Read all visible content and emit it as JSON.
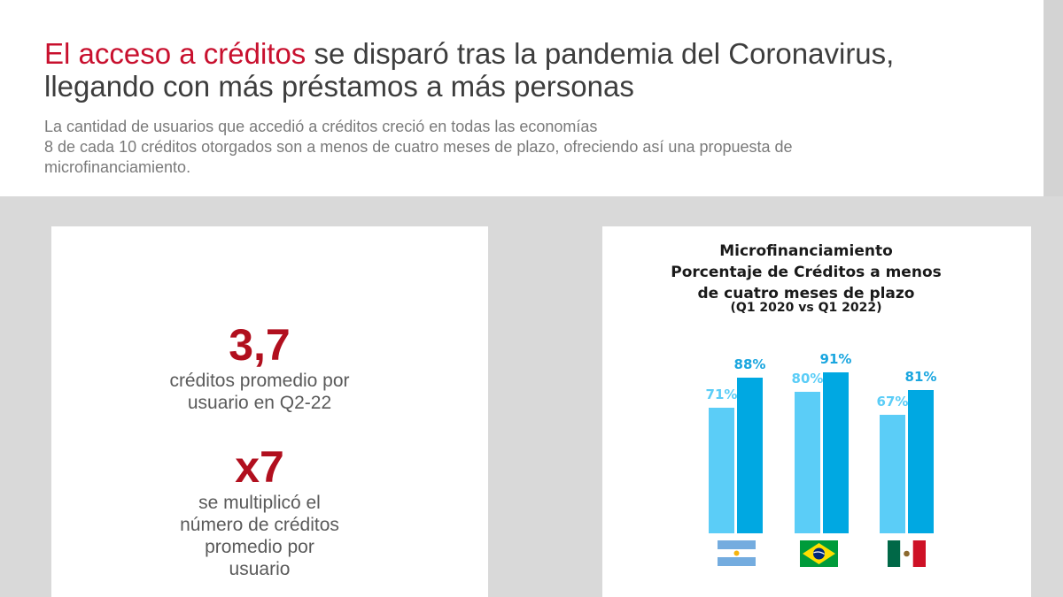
{
  "header": {
    "title_accent": "El acceso a créditos",
    "title_rest": " se disparó tras la pandemia del Coronavirus,",
    "title_line2": "llegando con más préstamos a más personas",
    "subtitle_lines": [
      "La cantidad de usuarios que accedió a créditos creció en todas las economías",
      "8 de cada 10 créditos otorgados son a menos de cuatro meses de plazo, ofreciendo así una propuesta de",
      "microfinanciamiento."
    ]
  },
  "stats": {
    "credits_value": "3,7",
    "credits_line1": "créditos promedio por",
    "credits_line2": "usuario en Q2-22",
    "multiplier_value": "x7",
    "multiplier_line1": "se multiplicó el",
    "multiplier_line2": "número de créditos",
    "multiplier_line3": "promedio por",
    "multiplier_line4": "usuario"
  },
  "chart_data": {
    "type": "bar",
    "title_lines": [
      "Microfinanciamiento",
      "Porcentaje de Créditos a menos",
      "de cuatro meses de plazo"
    ],
    "period": "(Q1 2020 vs Q1 2022)",
    "categories": [
      "Argentina",
      "Brasil",
      "México"
    ],
    "series": [
      {
        "values": [
          71,
          80,
          67
        ],
        "color": "#5bcdf7"
      },
      {
        "values": [
          88,
          91,
          81
        ],
        "color": "#00a8e2"
      }
    ],
    "value_suffix": "%",
    "ylim": [
      0,
      100
    ],
    "label_colors": [
      "#5bcdf7",
      "#1aa6df"
    ]
  },
  "colors": {
    "accent": "#c8102e",
    "stat_red": "#b10f1e",
    "gray_bg": "#d9d9d9"
  }
}
